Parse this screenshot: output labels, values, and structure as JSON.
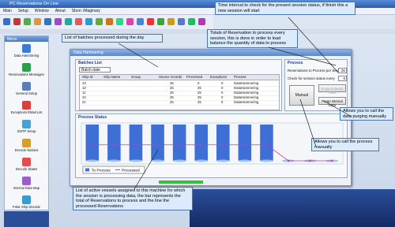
{
  "window": {
    "title": "PC Reservations On Line"
  },
  "menu": [
    "Main",
    "Setup",
    "Window",
    "About",
    "Sbon: iMaginary"
  ],
  "sidebar": {
    "title": "Menu",
    "items": [
      "Data Hammering",
      "Reservations Messages",
      "General Setup",
      "Exceptions EMail List",
      "SMTP Setup",
      "Decode Nations",
      "Decode States",
      "Internal Data Map",
      "Polar Ship Decode"
    ]
  },
  "inner_window": {
    "title": "Data Hammering"
  },
  "batches": {
    "title": "Batches List",
    "dropdown": "Batch date",
    "headers": [
      "Ship Id",
      "Ship Name",
      "Group",
      "Source records",
      "Processed",
      "Exceptions",
      "Process"
    ],
    "rows": [
      {
        "ship_id": "23",
        "source_records": "25",
        "processed": "0",
        "exceptions": "0",
        "process": "DataHammering"
      },
      {
        "ship_id": "10",
        "source_records": "25",
        "processed": "25",
        "exceptions": "0",
        "process": "DataHammering"
      },
      {
        "ship_id": "11",
        "source_records": "25",
        "processed": "25",
        "exceptions": "0",
        "process": "DataHammering"
      },
      {
        "ship_id": "24",
        "source_records": "25",
        "processed": "25",
        "exceptions": "0",
        "process": "DataHammering"
      },
      {
        "ship_id": "21",
        "source_records": "25",
        "processed": "25",
        "exceptions": "0",
        "process": "DataHammering"
      }
    ]
  },
  "process": {
    "title": "Process",
    "per_session_label": "Reservations to Process per Session",
    "per_session_value": "25",
    "interval_label": "Check for session status every",
    "interval_value": "6",
    "manual_button": "Manual",
    "purge_external_button": "Purge External Data",
    "purge_internal_button": "Purge Internal Data"
  },
  "process_status": {
    "type": "bar",
    "title": "Process Status",
    "categories": [
      null,
      null,
      null,
      null,
      null,
      null,
      null,
      null,
      null,
      null,
      null,
      null
    ],
    "series": [
      {
        "name": "To Process",
        "color": "#3d6fd6",
        "type": "bar",
        "values": [
          25,
          25,
          25,
          25,
          25,
          25,
          25,
          25,
          25,
          0,
          0,
          0
        ]
      },
      {
        "name": "Processed",
        "color": "#c03cb8",
        "type": "line",
        "values": [
          11,
          11,
          11,
          11,
          11,
          11,
          11,
          11,
          11,
          0,
          0,
          0
        ]
      }
    ]
  },
  "annotations": [
    "Time interval to check for the present session status, if finish this a new session will start",
    "Totals of Reservation to process every session, this is done in order to load balance the quantity of data to process",
    "List of batches processed during the day",
    "Allows you to call the data purging manually",
    "Allows you to call the process manually",
    "List of active vessels assigned to this machine for which the session is processing data, the bar represents the total of Reservations to process and the line the processed Reservations"
  ]
}
